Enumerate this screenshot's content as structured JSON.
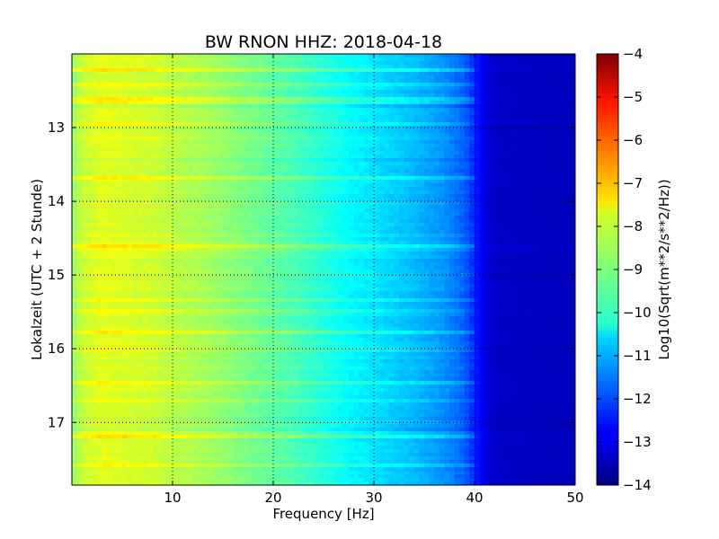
{
  "chart_data": {
    "type": "heatmap",
    "title": "BW RNON HHZ: 2018-04-18",
    "xlabel": "Frequency [Hz]",
    "ylabel": "Lokalzeit (UTC + 2 Stunde)",
    "xlim": [
      0,
      50
    ],
    "ylim": [
      12.0,
      17.85
    ],
    "y_inverted": true,
    "xticks": [
      10,
      20,
      30,
      40,
      50
    ],
    "yticks": [
      13,
      14,
      15,
      16,
      17
    ],
    "grid": true,
    "colormap": "jet",
    "colorbar": {
      "label": "Log10(Sqrt(m**2/s**2/Hz))",
      "range": [
        -14,
        -4
      ],
      "ticks": [
        -4,
        -5,
        -6,
        -7,
        -8,
        -9,
        -10,
        -11,
        -12,
        -13,
        -14
      ]
    },
    "spectrum_profile": {
      "frequency_hz": [
        0,
        1,
        3,
        5,
        8,
        10,
        13,
        16,
        19,
        22,
        25,
        28,
        31,
        34,
        37,
        39,
        40,
        41,
        42,
        50
      ],
      "log10_amplitude": [
        -8.8,
        -8.3,
        -8.0,
        -8.1,
        -8.2,
        -8.4,
        -8.6,
        -8.9,
        -9.2,
        -9.5,
        -9.9,
        -10.3,
        -10.6,
        -10.9,
        -11.3,
        -11.8,
        -12.4,
        -13.0,
        -13.3,
        -13.4
      ]
    }
  }
}
